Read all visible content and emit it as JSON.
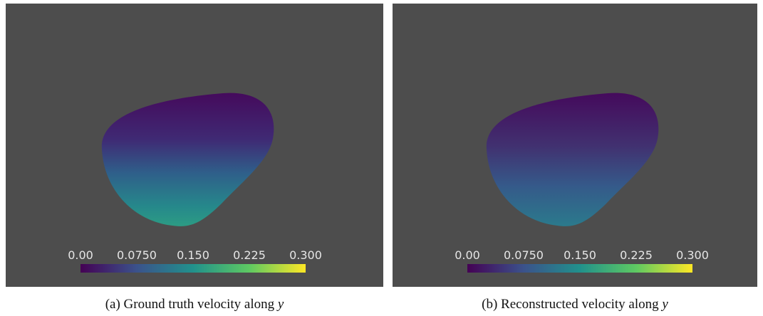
{
  "panels": [
    {
      "caption": {
        "prefix": "(a) Ground truth velocity along",
        "var": "y"
      },
      "colorbar": {
        "ticks": [
          "0.00",
          "0.0750",
          "0.150",
          "0.225",
          "0.300"
        ]
      }
    },
    {
      "caption": {
        "prefix": "(b) Reconstructed velocity along",
        "var": "y"
      },
      "colorbar": {
        "ticks": [
          "0.00",
          "0.0750",
          "0.150",
          "0.225",
          "0.300"
        ]
      }
    }
  ]
}
